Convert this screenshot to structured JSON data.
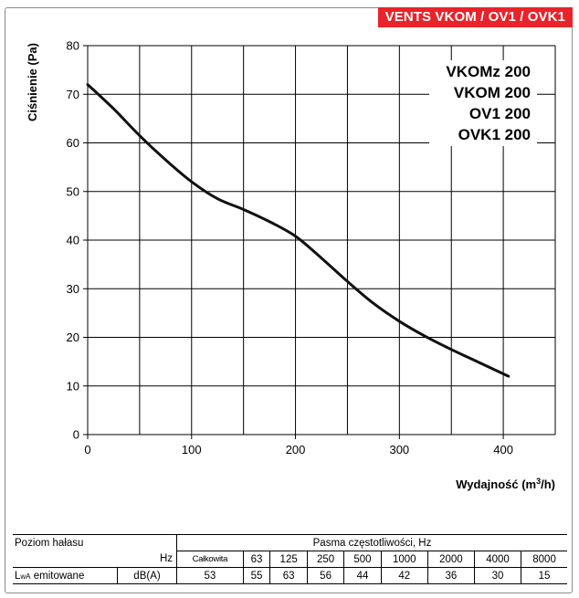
{
  "badge": "VENTS VKOM / OV1 / OVK1",
  "chart_data": {
    "type": "line",
    "ylabel": "Ciśnienie (Pa)",
    "xlabel_main": "Wydajność (m",
    "xlabel_sup": "3",
    "xlabel_end": "/h)",
    "xlim": [
      0,
      450
    ],
    "ylim": [
      0,
      80
    ],
    "x_ticks": [
      0,
      100,
      200,
      300,
      400
    ],
    "y_ticks": [
      0,
      10,
      20,
      30,
      40,
      50,
      60,
      70,
      80
    ],
    "x_grid_step": 50,
    "grid": true,
    "models": [
      "VKOMz 200",
      "VKOM 200",
      "OV1 200",
      "OVK1 200"
    ],
    "series": [
      {
        "x": [
          0,
          25,
          50,
          75,
          100,
          125,
          150,
          175,
          200,
          225,
          250,
          275,
          300,
          325,
          350,
          375,
          405
        ],
        "y": [
          72,
          67,
          61.5,
          56.5,
          52,
          48.5,
          46.3,
          43.8,
          40.8,
          36.3,
          31.5,
          27,
          23.3,
          20.2,
          17.5,
          15,
          12
        ]
      }
    ]
  },
  "noise_table": {
    "label_level": "Poziom hałasu",
    "label_bands": "Pasma częstotliwości, Hz",
    "hz_label": "Hz",
    "lwa_main": "L",
    "lwa_sub": "wA",
    "lwa_rest": " emitowane",
    "unit": "dB(A)",
    "bands": [
      "Całkowita",
      "63",
      "125",
      "250",
      "500",
      "1000",
      "2000",
      "4000",
      "8000"
    ],
    "values": [
      "53",
      "55",
      "63",
      "56",
      "44",
      "42",
      "36",
      "30",
      "15"
    ]
  }
}
